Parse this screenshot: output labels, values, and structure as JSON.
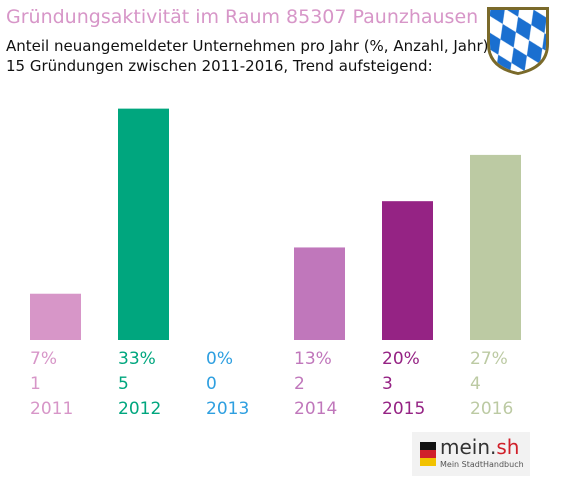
{
  "title": "Gründungsaktivität im Raum 85307 Paunzhausen",
  "subtitle_line1": "Anteil neuangemeldeter Unternehmen pro Jahr (%, Anzahl, Jahr)",
  "subtitle_line2": "15 Gründungen zwischen 2011-2016, Trend aufsteigend:",
  "logo": {
    "main": "mein.",
    "accent": "sh",
    "sub": "Mein StadtHandbuch"
  },
  "chart_data": {
    "type": "bar",
    "categories": [
      "2011",
      "2012",
      "2013",
      "2014",
      "2015",
      "2016"
    ],
    "percent_labels": [
      "7%",
      "33%",
      "0%",
      "13%",
      "20%",
      "27%"
    ],
    "values": [
      1,
      5,
      0,
      2,
      3,
      4
    ],
    "colors": [
      "#d796c8",
      "#00a67e",
      "#2e9fe0",
      "#c077bb",
      "#952384",
      "#bccaa3"
    ],
    "ylim": [
      0,
      5.1
    ]
  }
}
